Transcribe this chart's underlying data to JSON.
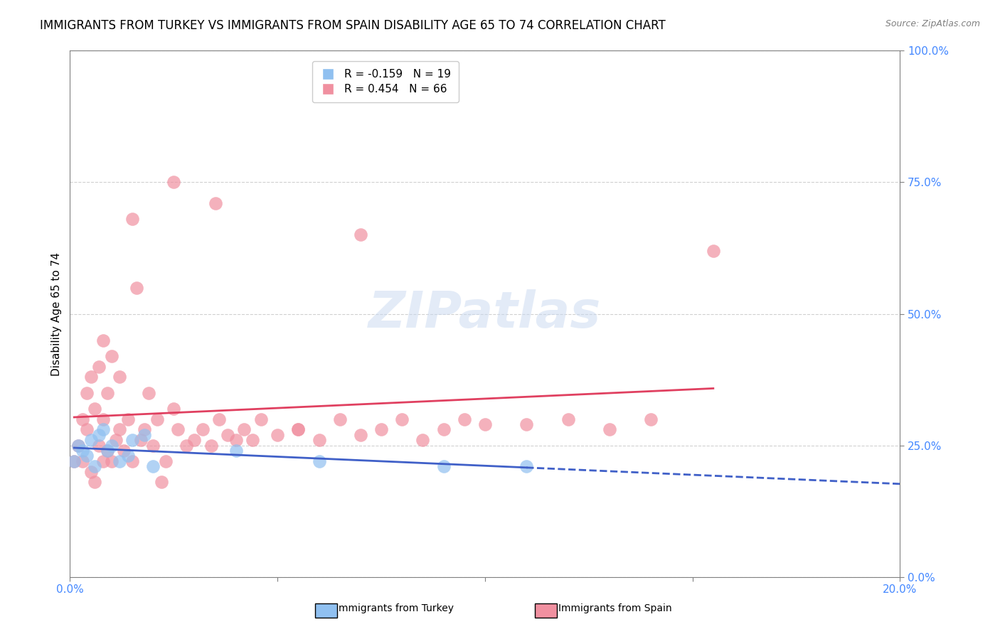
{
  "title": "IMMIGRANTS FROM TURKEY VS IMMIGRANTS FROM SPAIN DISABILITY AGE 65 TO 74 CORRELATION CHART",
  "source": "Source: ZipAtlas.com",
  "ylabel": "Disability Age 65 to 74",
  "watermark": "ZIPatlas",
  "legend_turkey": "Immigrants from Turkey",
  "legend_spain": "Immigrants from Spain",
  "R_turkey": -0.159,
  "N_turkey": 19,
  "R_spain": 0.454,
  "N_spain": 66,
  "color_turkey": "#90C0F0",
  "color_spain": "#F090A0",
  "line_color_turkey": "#4060C8",
  "line_color_spain": "#E04060",
  "xlim": [
    0.0,
    0.2
  ],
  "ylim": [
    0.0,
    1.0
  ],
  "turkey_x": [
    0.001,
    0.002,
    0.003,
    0.004,
    0.005,
    0.006,
    0.007,
    0.008,
    0.009,
    0.01,
    0.012,
    0.014,
    0.015,
    0.018,
    0.02,
    0.04,
    0.06,
    0.09,
    0.11
  ],
  "turkey_y": [
    0.22,
    0.25,
    0.24,
    0.23,
    0.26,
    0.21,
    0.27,
    0.28,
    0.24,
    0.25,
    0.22,
    0.23,
    0.26,
    0.27,
    0.21,
    0.24,
    0.22,
    0.21,
    0.21
  ],
  "spain_x": [
    0.001,
    0.002,
    0.003,
    0.003,
    0.004,
    0.004,
    0.005,
    0.005,
    0.006,
    0.006,
    0.007,
    0.007,
    0.008,
    0.008,
    0.008,
    0.009,
    0.009,
    0.01,
    0.01,
    0.011,
    0.012,
    0.012,
    0.013,
    0.014,
    0.015,
    0.016,
    0.017,
    0.018,
    0.019,
    0.02,
    0.021,
    0.022,
    0.023,
    0.025,
    0.026,
    0.028,
    0.03,
    0.032,
    0.034,
    0.036,
    0.038,
    0.04,
    0.042,
    0.044,
    0.046,
    0.05,
    0.055,
    0.06,
    0.065,
    0.07,
    0.075,
    0.08,
    0.085,
    0.09,
    0.095,
    0.1,
    0.11,
    0.12,
    0.13,
    0.14,
    0.015,
    0.025,
    0.035,
    0.055,
    0.07,
    0.155
  ],
  "spain_y": [
    0.22,
    0.25,
    0.3,
    0.22,
    0.28,
    0.35,
    0.2,
    0.38,
    0.18,
    0.32,
    0.25,
    0.4,
    0.22,
    0.3,
    0.45,
    0.24,
    0.35,
    0.22,
    0.42,
    0.26,
    0.28,
    0.38,
    0.24,
    0.3,
    0.22,
    0.55,
    0.26,
    0.28,
    0.35,
    0.25,
    0.3,
    0.18,
    0.22,
    0.32,
    0.28,
    0.25,
    0.26,
    0.28,
    0.25,
    0.3,
    0.27,
    0.26,
    0.28,
    0.26,
    0.3,
    0.27,
    0.28,
    0.26,
    0.3,
    0.27,
    0.28,
    0.3,
    0.26,
    0.28,
    0.3,
    0.29,
    0.29,
    0.3,
    0.28,
    0.3,
    0.68,
    0.75,
    0.71,
    0.28,
    0.65,
    0.62
  ],
  "bg_color": "#FFFFFF",
  "grid_color": "#D0D0D0",
  "axis_color": "#808080",
  "ytick_color": "#4488FF",
  "xtick_color": "#4488FF",
  "title_fontsize": 12,
  "axis_label_fontsize": 11,
  "tick_fontsize": 11,
  "legend_fontsize": 11
}
